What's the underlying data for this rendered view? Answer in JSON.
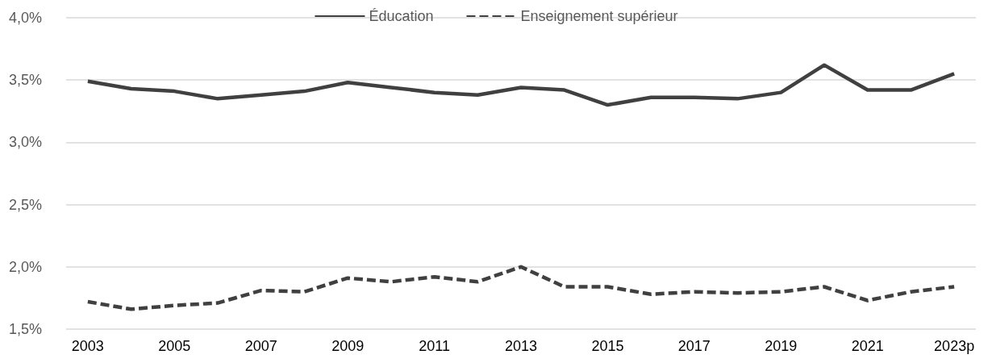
{
  "chart_data": {
    "type": "line",
    "categories": [
      "2003",
      null,
      "2005",
      null,
      "2007",
      null,
      "2009",
      null,
      "2011",
      null,
      "2013",
      null,
      "2015",
      null,
      "2017",
      null,
      "2019",
      null,
      "2021",
      null,
      "2023p"
    ],
    "series": [
      {
        "name": "Éducation",
        "color": "#404040",
        "line_style": "solid",
        "values": [
          3.49,
          3.43,
          3.41,
          3.35,
          3.38,
          3.41,
          3.48,
          3.44,
          3.4,
          3.38,
          3.44,
          3.42,
          3.3,
          3.36,
          3.36,
          3.35,
          3.4,
          3.62,
          3.42,
          3.42,
          3.55
        ]
      },
      {
        "name": "Enseignement supérieur",
        "color": "#404040",
        "line_style": "dashed",
        "values": [
          1.72,
          1.66,
          1.69,
          1.71,
          1.81,
          1.8,
          1.91,
          1.88,
          1.92,
          1.88,
          2.0,
          1.84,
          1.84,
          1.78,
          1.8,
          1.79,
          1.8,
          1.84,
          1.73,
          1.8,
          1.84
        ]
      }
    ],
    "ylim": [
      1.5,
      4.0
    ],
    "yticks": [
      {
        "value": 1.5,
        "label": "1,5%"
      },
      {
        "value": 2.0,
        "label": "2,0%"
      },
      {
        "value": 2.5,
        "label": "2,5%"
      },
      {
        "value": 3.0,
        "label": "3,0%"
      },
      {
        "value": 3.5,
        "label": "3,5%"
      },
      {
        "value": 4.0,
        "label": "4,0%"
      }
    ],
    "grid": "y",
    "legend": "top",
    "marker": "none"
  }
}
